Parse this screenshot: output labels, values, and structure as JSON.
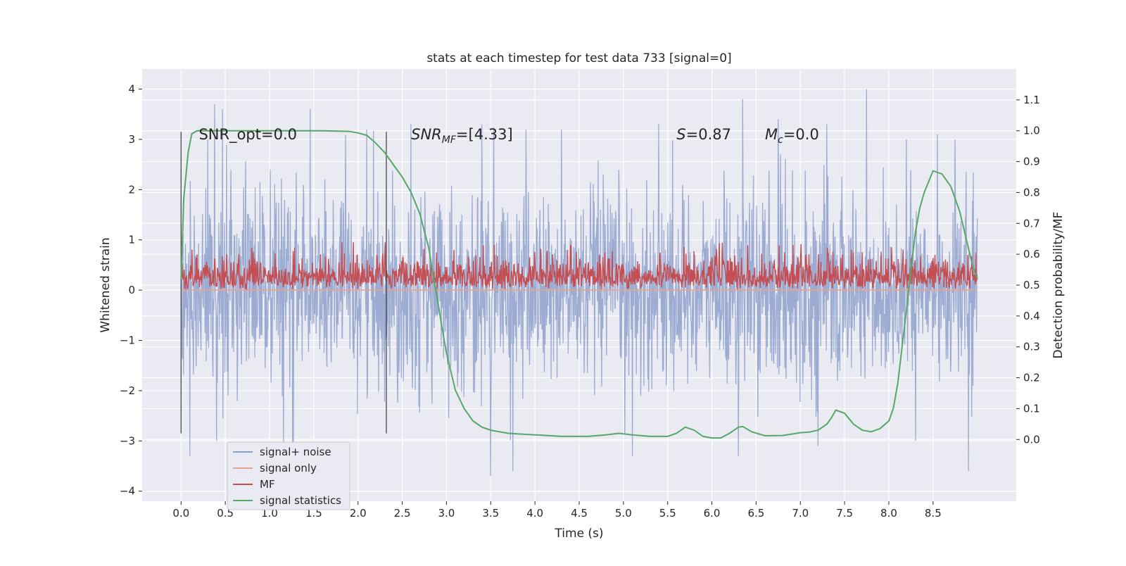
{
  "chart_data": {
    "type": "line",
    "title": "stats at each timestep for test data 733 [signal=0]",
    "xlabel": "Time (s)",
    "ylabel": "Whitened strain",
    "ylabel_right": "Detection probability/MF",
    "xlim": [
      -0.44,
      9.44
    ],
    "ylim": [
      -4.2,
      4.4
    ],
    "ylim_right": [
      -0.2,
      1.2
    ],
    "x_ticks": [
      "0.0",
      "0.5",
      "1.0",
      "1.5",
      "2.0",
      "2.5",
      "3.0",
      "3.5",
      "4.0",
      "4.5",
      "5.0",
      "5.5",
      "6.0",
      "6.5",
      "7.0",
      "7.5",
      "8.0",
      "8.5"
    ],
    "x_tick_values": [
      0,
      0.5,
      1,
      1.5,
      2,
      2.5,
      3,
      3.5,
      4,
      4.5,
      5,
      5.5,
      6,
      6.5,
      7,
      7.5,
      8,
      8.5
    ],
    "y_ticks": [
      "4",
      "3",
      "2",
      "1",
      "0",
      "−1",
      "−2",
      "−3",
      "−4"
    ],
    "y_tick_values": [
      4,
      3,
      2,
      1,
      0,
      -1,
      -2,
      -3,
      -4
    ],
    "y_right_ticks": [
      "1.1",
      "1.0",
      "0.9",
      "0.8",
      "0.7",
      "0.6",
      "0.5",
      "0.4",
      "0.3",
      "0.2",
      "0.1",
      "0.0"
    ],
    "y_right_tick_values": [
      1.1,
      1.0,
      0.9,
      0.8,
      0.7,
      0.6,
      0.5,
      0.4,
      0.3,
      0.2,
      0.1,
      0.0
    ],
    "grid": true,
    "legend_position": "lower-left",
    "annotations": {
      "snr_opt": "SNR_opt=0.0",
      "snr_mf_main": "SNR",
      "snr_mf_sub": "MF",
      "snr_mf_value": "=[4.33]",
      "s_main": "S",
      "s_value": "=0.87",
      "mc_main": "M",
      "mc_sub": "c",
      "mc_value": "=0.0"
    },
    "vertical_markers": [
      0.0,
      2.32
    ],
    "series": [
      {
        "name": "signal+ noise",
        "color": "#8da0cb",
        "axis": "left",
        "description_envelope": {
          "x_range": [
            0,
            9.0
          ],
          "upper_typical": 2.2,
          "lower_typical": -2.2,
          "max": 4.0,
          "min": -3.7
        },
        "peaks": [
          [
            0.3,
            3.0
          ],
          [
            0.38,
            3.7
          ],
          [
            0.47,
            3.6
          ],
          [
            1.46,
            3.6
          ],
          [
            2.1,
            3.2
          ],
          [
            2.6,
            3.3
          ],
          [
            3.4,
            3.3
          ],
          [
            3.9,
            3.2
          ],
          [
            4.3,
            3.2
          ],
          [
            5.1,
            3.0
          ],
          [
            5.4,
            3.3
          ],
          [
            6.35,
            3.8
          ],
          [
            6.75,
            3.4
          ],
          [
            7.3,
            3.3
          ],
          [
            7.75,
            4.0
          ],
          [
            8.2,
            3.0
          ],
          [
            8.55,
            3.1
          ],
          [
            8.75,
            3.0
          ]
        ],
        "troughs": [
          [
            0.1,
            -3.3
          ],
          [
            0.4,
            -3.0
          ],
          [
            3.5,
            -3.7
          ],
          [
            3.75,
            -3.6
          ],
          [
            5.1,
            -3.3
          ],
          [
            6.3,
            -3.3
          ],
          [
            7.2,
            -3.1
          ],
          [
            8.3,
            -3.0
          ],
          [
            8.9,
            -3.6
          ]
        ]
      },
      {
        "name": "signal only",
        "color": "#e8a48b",
        "axis": "left",
        "x": [
          0,
          9.0
        ],
        "y": [
          0,
          0
        ]
      },
      {
        "name": "MF",
        "color": "#c44e52",
        "axis": "left",
        "description_envelope": {
          "x_range": [
            0,
            9.0
          ],
          "upper_typical": 0.7,
          "lower_typical": 0.0,
          "max": 0.95,
          "min": 0.0
        }
      },
      {
        "name": "signal statistics",
        "color": "#55a868",
        "axis": "right",
        "x": [
          0.0,
          0.03,
          0.08,
          0.12,
          0.18,
          0.25,
          0.4,
          0.8,
          1.2,
          1.6,
          1.9,
          2.0,
          2.1,
          2.2,
          2.3,
          2.4,
          2.5,
          2.6,
          2.7,
          2.8,
          2.85,
          2.9,
          2.95,
          3.0,
          3.05,
          3.1,
          3.2,
          3.3,
          3.4,
          3.5,
          3.7,
          4.0,
          4.3,
          4.6,
          4.8,
          4.95,
          5.1,
          5.3,
          5.5,
          5.6,
          5.7,
          5.8,
          5.9,
          6.0,
          6.1,
          6.2,
          6.3,
          6.35,
          6.45,
          6.6,
          6.8,
          7.0,
          7.1,
          7.2,
          7.3,
          7.35,
          7.4,
          7.5,
          7.6,
          7.7,
          7.8,
          7.9,
          8.0,
          8.05,
          8.1,
          8.15,
          8.2,
          8.25,
          8.3,
          8.35,
          8.4,
          8.5,
          8.6,
          8.7,
          8.8,
          8.9,
          8.95,
          9.0
        ],
        "y": [
          0.52,
          0.78,
          0.93,
          0.99,
          1.0,
          1.0,
          1.0,
          1.0,
          1.0,
          1.0,
          0.998,
          0.993,
          0.985,
          0.96,
          0.93,
          0.89,
          0.85,
          0.8,
          0.73,
          0.62,
          0.53,
          0.45,
          0.36,
          0.28,
          0.22,
          0.16,
          0.1,
          0.06,
          0.04,
          0.03,
          0.02,
          0.015,
          0.01,
          0.01,
          0.015,
          0.02,
          0.015,
          0.01,
          0.01,
          0.02,
          0.04,
          0.03,
          0.01,
          0.005,
          0.005,
          0.02,
          0.04,
          0.042,
          0.025,
          0.012,
          0.013,
          0.022,
          0.024,
          0.03,
          0.05,
          0.07,
          0.095,
          0.085,
          0.05,
          0.03,
          0.025,
          0.035,
          0.06,
          0.1,
          0.18,
          0.3,
          0.42,
          0.55,
          0.67,
          0.75,
          0.8,
          0.87,
          0.86,
          0.82,
          0.74,
          0.62,
          0.56,
          0.52
        ]
      }
    ]
  }
}
